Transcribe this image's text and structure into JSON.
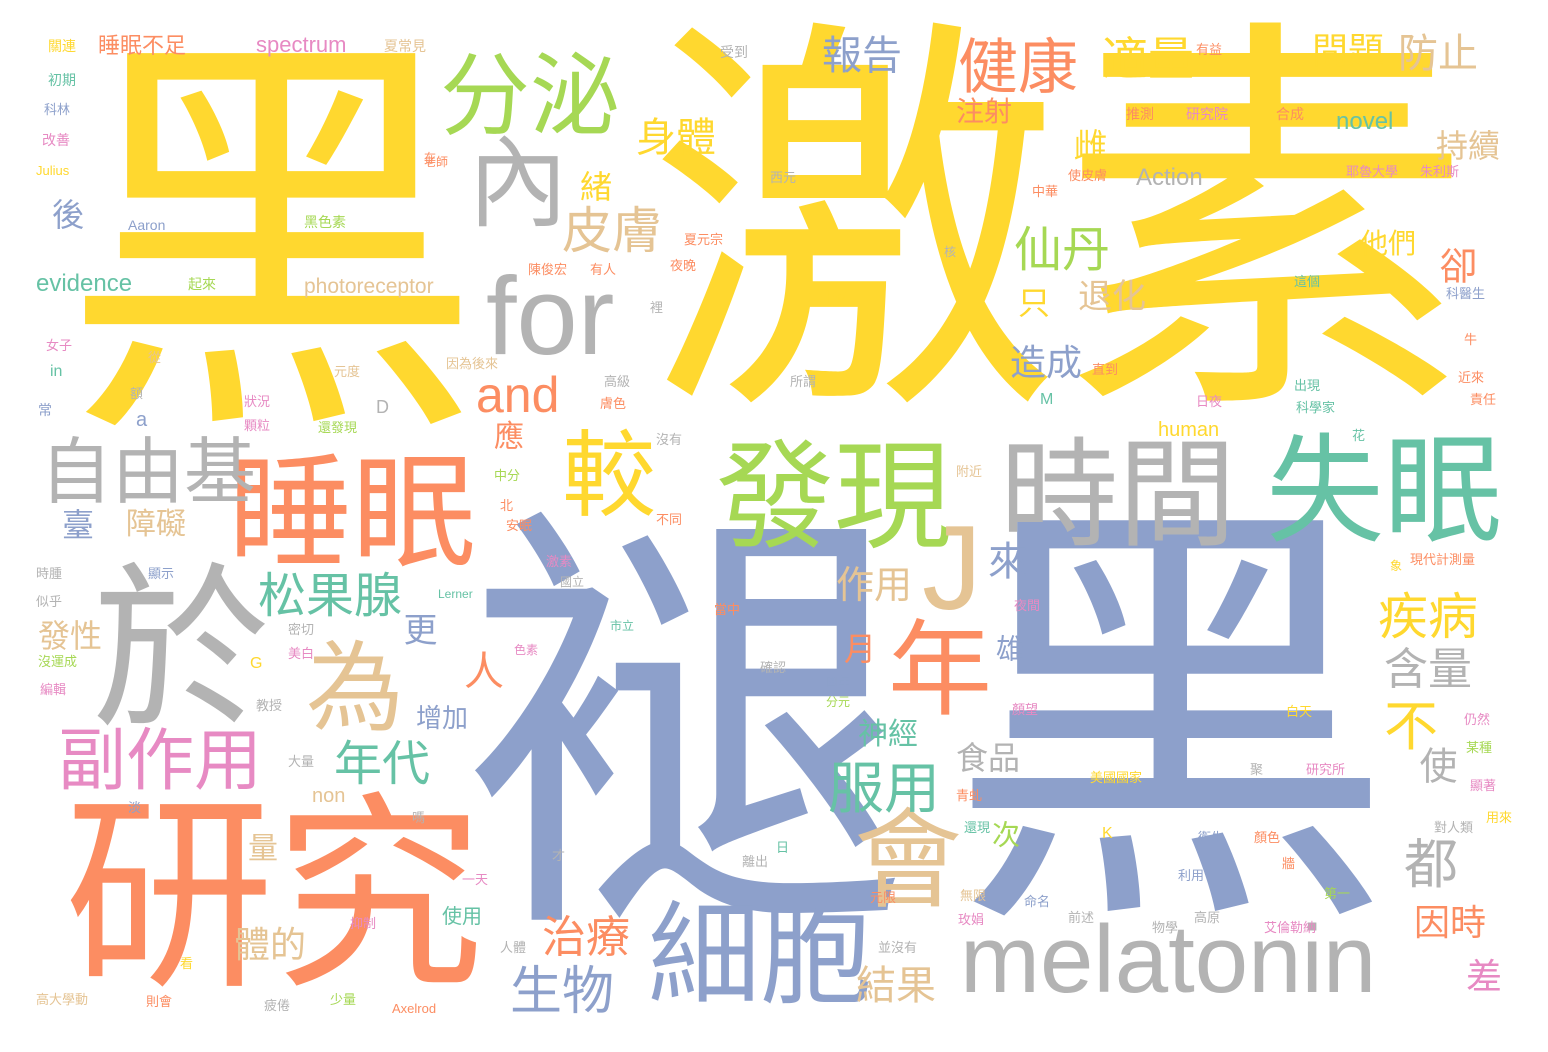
{
  "palette": [
    "#FFD82F",
    "#8DA0CB",
    "#FC8D62",
    "#A6D854",
    "#B3B3B3",
    "#66C2A5",
    "#E78AC3",
    "#E5C494"
  ],
  "words": [
    "黑",
    "激素",
    "褪",
    "黑",
    "研究",
    "於",
    "睡眠",
    "發現",
    "時間",
    "失眠",
    "分泌",
    "內",
    "for",
    "會",
    "細胞",
    "melatonin",
    "年",
    "為",
    "較",
    "自由基",
    "副作用",
    "健康",
    "適量",
    "報告",
    "and",
    "J",
    "皮膚",
    "身體",
    "仙丹",
    "松果腺",
    "疾病",
    "服用",
    "年代",
    "生物",
    "治療",
    "含量",
    "不",
    "都",
    "問題",
    "防止",
    "睡眠不足",
    "spectrum",
    "novel",
    "Action",
    "evidence",
    "photoreceptor",
    "human",
    "注射",
    "雌",
    "持續",
    "他們",
    "卻",
    "退化",
    "只",
    "造成",
    "緒",
    "後",
    "臺",
    "障礙",
    "人",
    "應",
    "來",
    "作用",
    "月",
    "更",
    "雄",
    "發性",
    "神經",
    "食品",
    "增加",
    "使",
    "因時",
    "差",
    "結果",
    "體的",
    "次",
    "量",
    "non",
    "關連",
    "初期",
    "科林",
    "改善",
    "Julius",
    "Aaron",
    "黑色素",
    "起來",
    "在",
    "a",
    "常",
    "in",
    "受到",
    "夏常見",
    "有益",
    "推測",
    "研究院",
    "合成",
    "西元",
    "中華",
    "使皮膚",
    "耶魯大學",
    "朱利斯",
    "夏元宗",
    "夜晚",
    "二十五",
    "這個",
    "科醫生",
    "牛",
    "近來",
    "出現",
    "責任",
    "科學家",
    "花",
    "現代計測量",
    "象",
    "仍然",
    "某種",
    "顯著",
    "用來",
    "對人類",
    "第一",
    "艾倫勒納",
    "物學",
    "命名",
    "前述",
    "高原",
    "利用",
    "衛生",
    "顏色",
    "白天",
    "美國國家",
    "研究所",
    "聚",
    "直到",
    "所謂",
    "日夜",
    "高級",
    "膚色",
    "中分",
    "北",
    "安眠",
    "激素",
    "國立",
    "市立",
    "當中",
    "夜間",
    "確認",
    "四年",
    "分元",
    "不同",
    "沒有",
    "附近",
    "M",
    "D",
    "K",
    "Lerner",
    "G",
    "Axelrod",
    "老師",
    "女子",
    "從",
    "額",
    "元度",
    "狀況",
    "顆粒",
    "還發現",
    "因為後來",
    "陳俊宏",
    "有人",
    "裡",
    "時腫",
    "顯示",
    "似乎",
    "密切",
    "美白",
    "沒運成",
    "編輯",
    "教授",
    "大量",
    "淡",
    "嗎",
    "才",
    "一天",
    "使用",
    "抑制",
    "看",
    "高大學動",
    "則會",
    "疲倦",
    "少量",
    "人體",
    "並沒有",
    "離出",
    "日",
    "無限",
    "玫娟",
    "核",
    "色素",
    "顏望",
    "青虬",
    "還現",
    "牆",
    "元限"
  ]
}
